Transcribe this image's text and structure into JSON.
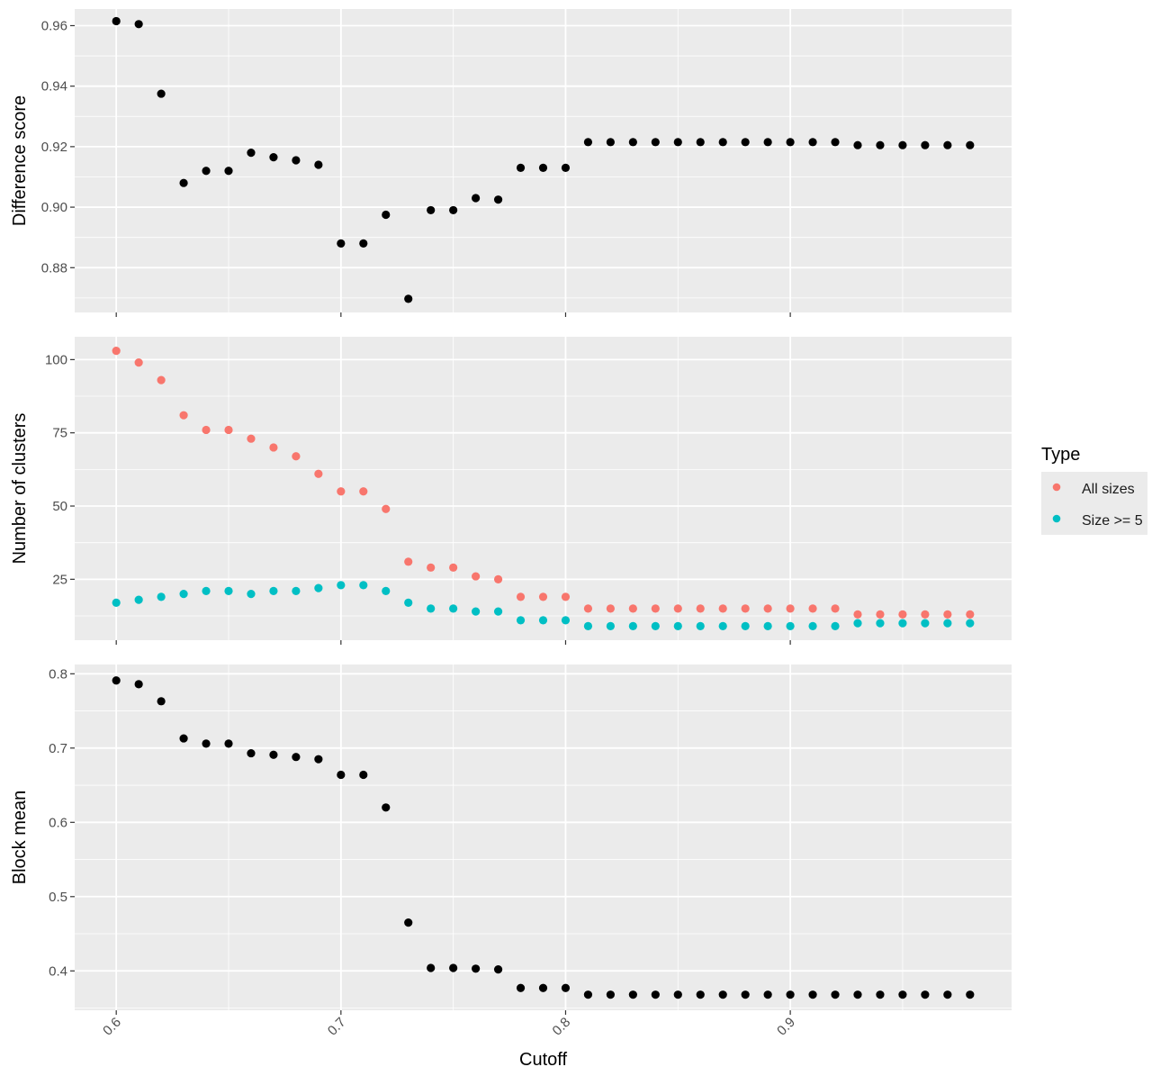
{
  "chart_data": {
    "type": "scatter",
    "xlabel": "Cutoff",
    "x": [
      0.6,
      0.61,
      0.62,
      0.63,
      0.64,
      0.65,
      0.66,
      0.67,
      0.68,
      0.69,
      0.7,
      0.71,
      0.72,
      0.73,
      0.74,
      0.75,
      0.76,
      0.77,
      0.78,
      0.79,
      0.8,
      0.81,
      0.82,
      0.83,
      0.84,
      0.85,
      0.86,
      0.87,
      0.88,
      0.89,
      0.9,
      0.91,
      0.92,
      0.93,
      0.94,
      0.95,
      0.96,
      0.97,
      0.98
    ],
    "xlim": [
      0.5815,
      0.9985
    ],
    "x_ticks": [
      0.6,
      0.7,
      0.8,
      0.9
    ],
    "x_tick_labels": [
      "0.6",
      "0.7",
      "0.8",
      "0.9"
    ],
    "grid": true,
    "legend": {
      "title": "Type",
      "placement": "right",
      "entries": [
        {
          "label": "All sizes",
          "color": "#F8766D"
        },
        {
          "label": "Size >= 5",
          "color": "#00BFC4"
        }
      ]
    },
    "panels": [
      {
        "ylabel": "Difference score",
        "ylim": [
          0.8652,
          0.9655
        ],
        "y_ticks": [
          0.88,
          0.9,
          0.92,
          0.94,
          0.96
        ],
        "y_tick_labels": [
          "0.88",
          "0.90",
          "0.92",
          "0.94",
          "0.96"
        ],
        "series": [
          {
            "color": "#000000",
            "values": [
              0.9615,
              0.9605,
              0.9375,
              0.908,
              0.912,
              0.912,
              0.918,
              0.9165,
              0.9155,
              0.914,
              0.888,
              0.888,
              0.8975,
              0.8697,
              0.899,
              0.899,
              0.903,
              0.9025,
              0.913,
              0.913,
              0.913,
              0.9215,
              0.9215,
              0.9215,
              0.9215,
              0.9215,
              0.9215,
              0.9215,
              0.9215,
              0.9215,
              0.9215,
              0.9215,
              0.9215,
              0.9205,
              0.9205,
              0.9205,
              0.9205,
              0.9205,
              0.9205
            ]
          }
        ]
      },
      {
        "ylabel": "Number of clusters",
        "ylim": [
          4.2,
          107.8
        ],
        "y_ticks": [
          25,
          50,
          75,
          100
        ],
        "y_tick_labels": [
          "25",
          "50",
          "75",
          "100"
        ],
        "series": [
          {
            "name": "All sizes",
            "color": "#F8766D",
            "values": [
              103,
              99,
              93,
              81,
              76,
              76,
              73,
              70,
              67,
              61,
              55,
              55,
              49,
              31,
              29,
              29,
              26,
              25,
              19,
              19,
              19,
              15,
              15,
              15,
              15,
              15,
              15,
              15,
              15,
              15,
              15,
              15,
              15,
              13,
              13,
              13,
              13,
              13,
              13
            ]
          },
          {
            "name": "Size >= 5",
            "color": "#00BFC4",
            "values": [
              17,
              18,
              19,
              20,
              21,
              21,
              20,
              21,
              21,
              22,
              23,
              23,
              21,
              17,
              15,
              15,
              14,
              14,
              11,
              11,
              11,
              9,
              9,
              9,
              9,
              9,
              9,
              9,
              9,
              9,
              9,
              9,
              9,
              10,
              10,
              10,
              10,
              10,
              10
            ]
          }
        ]
      },
      {
        "ylabel": "Block mean",
        "ylim": [
          0.347,
          0.8125
        ],
        "y_ticks": [
          0.4,
          0.5,
          0.6,
          0.7,
          0.8
        ],
        "y_tick_labels": [
          "0.4",
          "0.5",
          "0.6",
          "0.7",
          "0.8"
        ],
        "series": [
          {
            "color": "#000000",
            "values": [
              0.791,
              0.786,
              0.763,
              0.713,
              0.706,
              0.706,
              0.693,
              0.691,
              0.688,
              0.685,
              0.664,
              0.664,
              0.62,
              0.465,
              0.404,
              0.404,
              0.403,
              0.402,
              0.377,
              0.377,
              0.377,
              0.368,
              0.368,
              0.368,
              0.368,
              0.368,
              0.368,
              0.368,
              0.368,
              0.368,
              0.368,
              0.368,
              0.368,
              0.368,
              0.368,
              0.368,
              0.368,
              0.368,
              0.368
            ]
          }
        ]
      }
    ]
  }
}
